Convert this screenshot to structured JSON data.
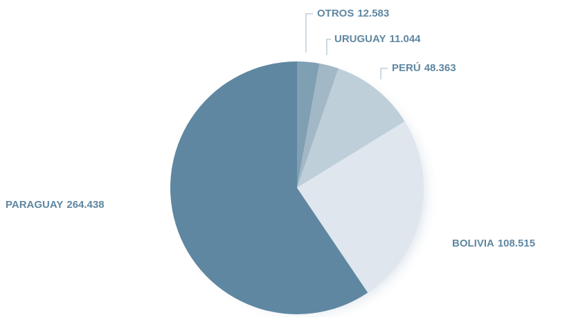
{
  "chart_data": {
    "type": "pie",
    "categories": [
      "OTROS",
      "URUGUAY",
      "PERÚ",
      "BOLIVIA",
      "PARAGUAY"
    ],
    "values": [
      12583,
      11044,
      48363,
      108515,
      264438
    ],
    "value_labels": [
      "12.583",
      "11.044",
      "48.363",
      "108.515",
      "264.438"
    ],
    "colors": [
      "#7f9fb3",
      "#a3b8c6",
      "#bfcfda",
      "#dfe6ed",
      "#5f87a1"
    ]
  }
}
